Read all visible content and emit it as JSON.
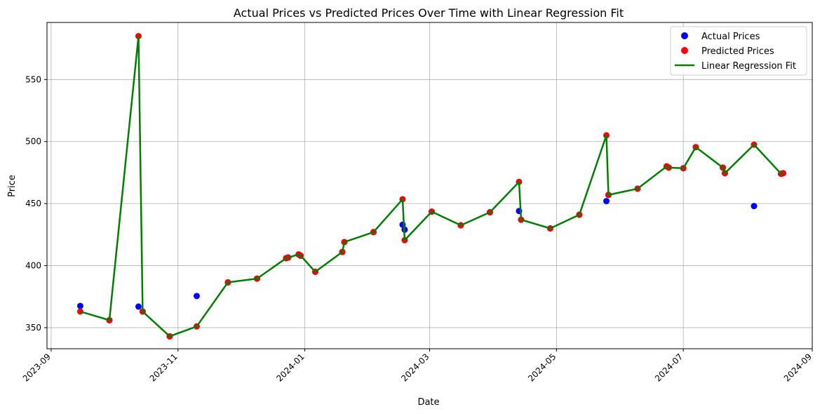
{
  "chart_data": {
    "type": "scatter",
    "title": "Actual Prices vs Predicted Prices Over Time with Linear Regression Fit",
    "xlabel": "Date",
    "ylabel": "Price",
    "x_ticks": [
      "2023-09",
      "2023-11",
      "2024-01",
      "2024-03",
      "2024-05",
      "2024-07",
      "2024-09"
    ],
    "y_ticks": [
      350,
      400,
      450,
      500,
      550
    ],
    "xlim": [
      "2023-08-30",
      "2024-09-01"
    ],
    "ylim": [
      333,
      596
    ],
    "grid": true,
    "legend_position": "top-right",
    "series": [
      {
        "name": "Actual Prices",
        "kind": "scatter",
        "color": "#0000ff",
        "points": [
          [
            "2023-09-15",
            367.5
          ],
          [
            "2023-09-29",
            356
          ],
          [
            "2023-10-13",
            367
          ],
          [
            "2023-10-15",
            363
          ],
          [
            "2023-10-28",
            343
          ],
          [
            "2023-11-10",
            375.5
          ],
          [
            "2023-11-25",
            386.5
          ],
          [
            "2023-12-09",
            389.5
          ],
          [
            "2023-12-23",
            406
          ],
          [
            "2023-12-24",
            406.5
          ],
          [
            "2023-12-29",
            409
          ],
          [
            "2023-12-30",
            408
          ],
          [
            "2024-01-06",
            395
          ],
          [
            "2024-01-19",
            411
          ],
          [
            "2024-01-20",
            419
          ],
          [
            "2024-02-03",
            427
          ],
          [
            "2024-02-17",
            433
          ],
          [
            "2024-02-18",
            429
          ],
          [
            "2024-03-02",
            443.5
          ],
          [
            "2024-03-16",
            432.5
          ],
          [
            "2024-03-30",
            443
          ],
          [
            "2024-04-13",
            444
          ],
          [
            "2024-04-14",
            437
          ],
          [
            "2024-04-28",
            430
          ],
          [
            "2024-05-12",
            441
          ],
          [
            "2024-05-25",
            452
          ],
          [
            "2024-05-26",
            457
          ],
          [
            "2024-06-09",
            462
          ],
          [
            "2024-06-23",
            480
          ],
          [
            "2024-06-24",
            479
          ],
          [
            "2024-07-01",
            478.5
          ],
          [
            "2024-07-07",
            495.5
          ],
          [
            "2024-07-20",
            479
          ],
          [
            "2024-07-21",
            474.5
          ],
          [
            "2024-08-04",
            448
          ],
          [
            "2024-08-17",
            474
          ],
          [
            "2024-08-18",
            474.5
          ]
        ]
      },
      {
        "name": "Predicted Prices",
        "kind": "scatter",
        "color": "#ff0000",
        "points": [
          [
            "2023-09-15",
            363
          ],
          [
            "2023-09-29",
            356
          ],
          [
            "2023-10-13",
            585
          ],
          [
            "2023-10-15",
            363
          ],
          [
            "2023-10-28",
            343
          ],
          [
            "2023-11-10",
            351
          ],
          [
            "2023-11-25",
            386.5
          ],
          [
            "2023-12-09",
            389.5
          ],
          [
            "2023-12-23",
            406
          ],
          [
            "2023-12-24",
            406.5
          ],
          [
            "2023-12-29",
            409
          ],
          [
            "2023-12-30",
            408
          ],
          [
            "2024-01-06",
            395
          ],
          [
            "2024-01-19",
            411
          ],
          [
            "2024-01-20",
            419
          ],
          [
            "2024-02-03",
            427
          ],
          [
            "2024-02-17",
            453.5
          ],
          [
            "2024-02-18",
            420.5
          ],
          [
            "2024-03-02",
            443.5
          ],
          [
            "2024-03-16",
            432.5
          ],
          [
            "2024-03-30",
            443
          ],
          [
            "2024-04-13",
            467.5
          ],
          [
            "2024-04-14",
            437
          ],
          [
            "2024-04-28",
            430
          ],
          [
            "2024-05-12",
            441
          ],
          [
            "2024-05-25",
            505
          ],
          [
            "2024-05-26",
            457
          ],
          [
            "2024-06-09",
            462
          ],
          [
            "2024-06-23",
            480
          ],
          [
            "2024-06-24",
            479
          ],
          [
            "2024-07-01",
            478.5
          ],
          [
            "2024-07-07",
            495.5
          ],
          [
            "2024-07-20",
            479
          ],
          [
            "2024-07-21",
            474.5
          ],
          [
            "2024-08-04",
            497.5
          ],
          [
            "2024-08-17",
            474
          ],
          [
            "2024-08-18",
            474.5
          ]
        ]
      },
      {
        "name": "Linear Regression Fit",
        "kind": "line",
        "color": "#008000",
        "points": [
          [
            "2023-09-15",
            363
          ],
          [
            "2023-09-29",
            356
          ],
          [
            "2023-10-13",
            585
          ],
          [
            "2023-10-15",
            363
          ],
          [
            "2023-10-28",
            343
          ],
          [
            "2023-11-10",
            351
          ],
          [
            "2023-11-25",
            386.5
          ],
          [
            "2023-12-09",
            389.5
          ],
          [
            "2023-12-23",
            406
          ],
          [
            "2023-12-24",
            406.5
          ],
          [
            "2023-12-29",
            409
          ],
          [
            "2023-12-30",
            408
          ],
          [
            "2024-01-06",
            395
          ],
          [
            "2024-01-19",
            411
          ],
          [
            "2024-01-20",
            419
          ],
          [
            "2024-02-03",
            427
          ],
          [
            "2024-02-17",
            453.5
          ],
          [
            "2024-02-18",
            420.5
          ],
          [
            "2024-03-02",
            443.5
          ],
          [
            "2024-03-16",
            432.5
          ],
          [
            "2024-03-30",
            443
          ],
          [
            "2024-04-13",
            467.5
          ],
          [
            "2024-04-14",
            437
          ],
          [
            "2024-04-28",
            430
          ],
          [
            "2024-05-12",
            441
          ],
          [
            "2024-05-25",
            505
          ],
          [
            "2024-05-26",
            457
          ],
          [
            "2024-06-09",
            462
          ],
          [
            "2024-06-23",
            480
          ],
          [
            "2024-06-24",
            479
          ],
          [
            "2024-07-01",
            478.5
          ],
          [
            "2024-07-07",
            495.5
          ],
          [
            "2024-07-20",
            479
          ],
          [
            "2024-07-21",
            474.5
          ],
          [
            "2024-08-04",
            497.5
          ],
          [
            "2024-08-17",
            474
          ],
          [
            "2024-08-18",
            474.5
          ]
        ]
      }
    ]
  }
}
